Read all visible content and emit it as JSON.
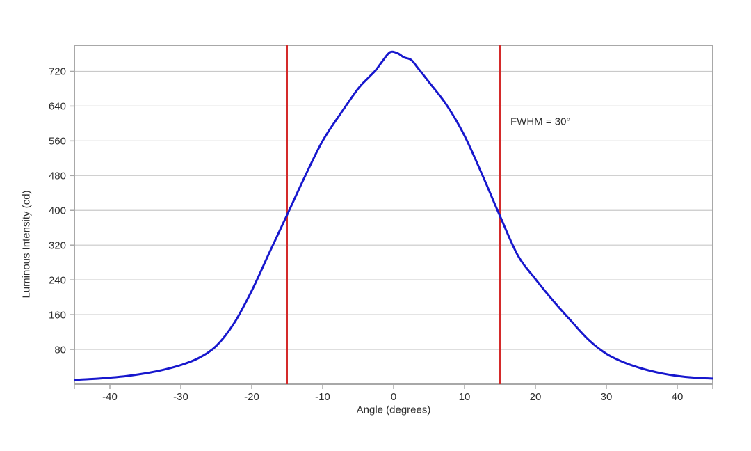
{
  "page": {
    "background": "#ffffff"
  },
  "chart_data": {
    "type": "line",
    "title": "",
    "xlabel": "Angle (degrees)",
    "ylabel": "Luminous Intensity (cd)",
    "xlim": [
      -45,
      45
    ],
    "ylim": [
      0,
      780
    ],
    "grid": "horizontal",
    "legend": "none",
    "x_ticks": [
      {
        "value": -40,
        "label": "-40"
      },
      {
        "value": -30,
        "label": "-30"
      },
      {
        "value": -20,
        "label": "-20"
      },
      {
        "value": -10,
        "label": "-10"
      },
      {
        "value": 0,
        "label": "0"
      },
      {
        "value": 10,
        "label": "10"
      },
      {
        "value": 20,
        "label": "20"
      },
      {
        "value": 30,
        "label": "30"
      },
      {
        "value": 40,
        "label": "40"
      }
    ],
    "y_ticks": [
      {
        "value": 80,
        "label": "80"
      },
      {
        "value": 160,
        "label": "160"
      },
      {
        "value": 240,
        "label": "240"
      },
      {
        "value": 320,
        "label": "320"
      },
      {
        "value": 400,
        "label": "400"
      },
      {
        "value": 480,
        "label": "480"
      },
      {
        "value": 560,
        "label": "560"
      },
      {
        "value": 640,
        "label": "640"
      },
      {
        "value": 720,
        "label": "720"
      }
    ],
    "series": [
      {
        "name": "luminous-intensity-vs-angle",
        "color": "#1717cd",
        "stroke_width": 3,
        "points": [
          [
            -45,
            10
          ],
          [
            -42.5,
            12
          ],
          [
            -40,
            15
          ],
          [
            -37.5,
            19
          ],
          [
            -35,
            25
          ],
          [
            -32.5,
            33
          ],
          [
            -30,
            44
          ],
          [
            -27.5,
            60
          ],
          [
            -25,
            88
          ],
          [
            -22.5,
            140
          ],
          [
            -20,
            215
          ],
          [
            -17.5,
            303
          ],
          [
            -15,
            390
          ],
          [
            -12.5,
            478
          ],
          [
            -10,
            560
          ],
          [
            -7.5,
            622
          ],
          [
            -5,
            680
          ],
          [
            -3.5,
            706
          ],
          [
            -2.5,
            723
          ],
          [
            -1.5,
            745
          ],
          [
            -0.5,
            764
          ],
          [
            0.5,
            762
          ],
          [
            1.5,
            752
          ],
          [
            2.5,
            746
          ],
          [
            3.5,
            726
          ],
          [
            5,
            695
          ],
          [
            7.5,
            642
          ],
          [
            10,
            572
          ],
          [
            12.5,
            482
          ],
          [
            15,
            387
          ],
          [
            17.5,
            297
          ],
          [
            20,
            242
          ],
          [
            22.5,
            192
          ],
          [
            25,
            146
          ],
          [
            27.5,
            102
          ],
          [
            30,
            70
          ],
          [
            32.5,
            50
          ],
          [
            35,
            36
          ],
          [
            37.5,
            26
          ],
          [
            40,
            19
          ],
          [
            42.5,
            15
          ],
          [
            45,
            13
          ]
        ]
      }
    ],
    "reference_lines": [
      {
        "name": "fwhm-left-line",
        "axis": "x",
        "value": -15,
        "color": "#d42a2a",
        "stroke_width": 2
      },
      {
        "name": "fwhm-right-line",
        "axis": "x",
        "value": 15,
        "color": "#d42a2a",
        "stroke_width": 2
      }
    ],
    "annotations": [
      {
        "name": "fwhm-label",
        "text": "FWHM = 30°",
        "x": 16.5,
        "y": 604
      }
    ],
    "colors": {
      "grid": "#c9c9c9",
      "border": "#a8a8a8",
      "tick": "#a8a8a8",
      "text": "#2e2e2e",
      "background": "#ffffff"
    }
  }
}
